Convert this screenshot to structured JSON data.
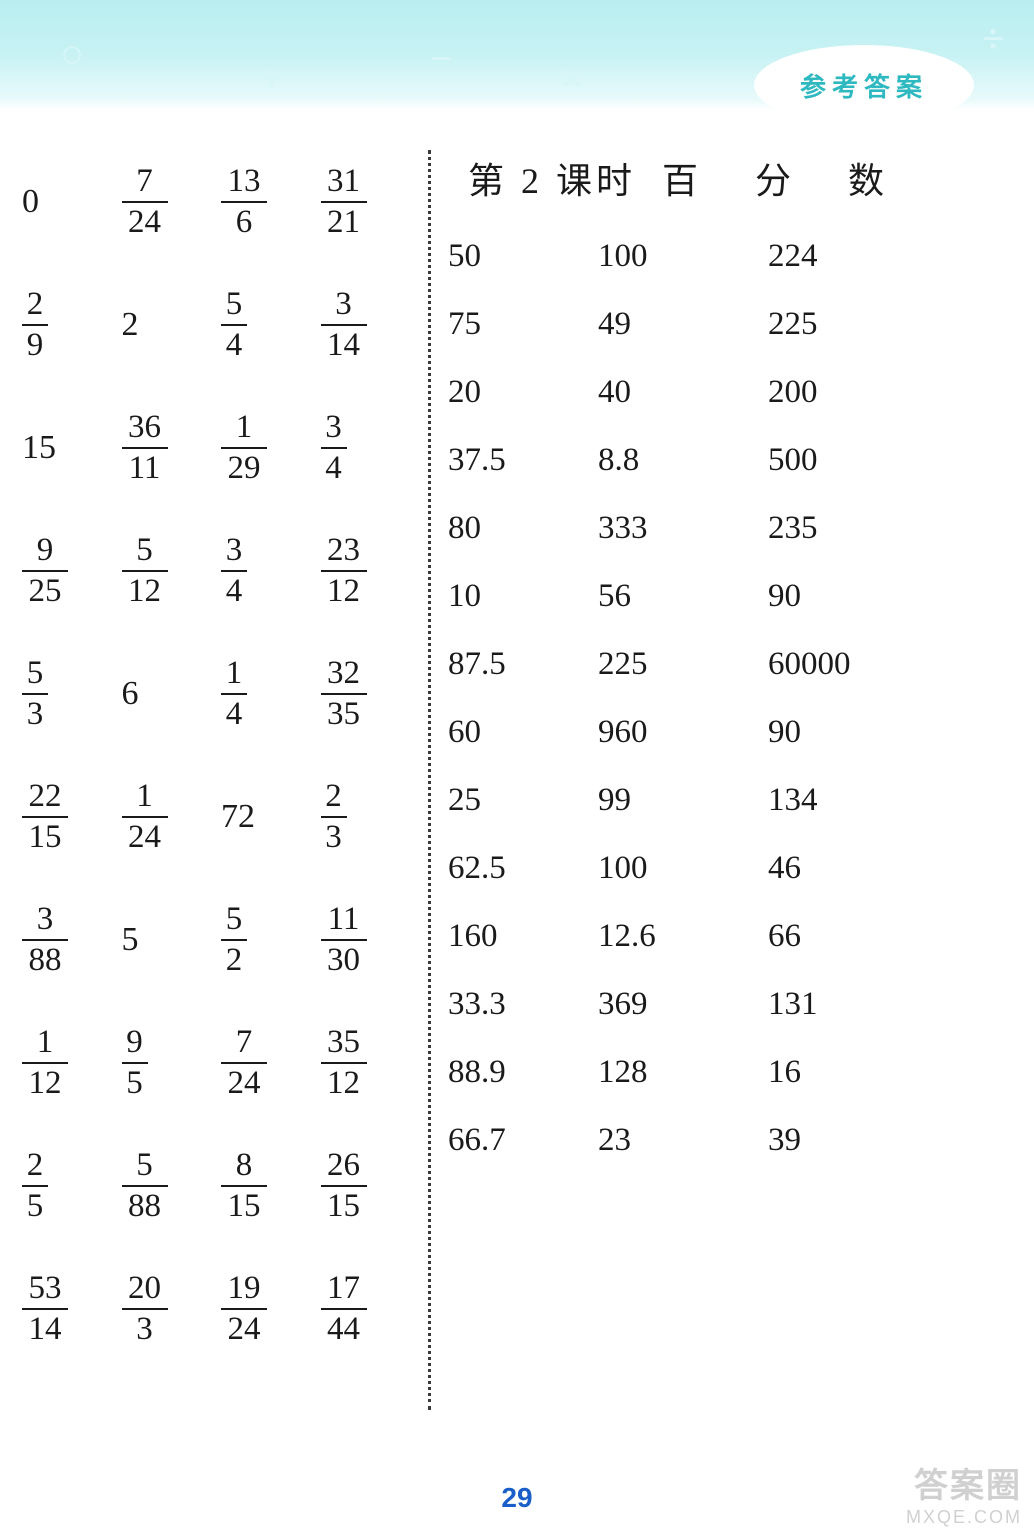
{
  "header": {
    "badge_text": "参考答案",
    "badge_color": "#2eb8c0",
    "band_color": "#b8eef0"
  },
  "left_table": {
    "font_size": 33,
    "text_color": "#1a1a1a",
    "rows": [
      [
        {
          "whole": "0"
        },
        {
          "n": "7",
          "d": "24"
        },
        {
          "n": "13",
          "d": "6"
        },
        {
          "n": "31",
          "d": "21"
        }
      ],
      [
        {
          "n": "2",
          "d": "9"
        },
        {
          "whole": "2"
        },
        {
          "n": "5",
          "d": "4"
        },
        {
          "n": "3",
          "d": "14"
        }
      ],
      [
        {
          "whole": "15"
        },
        {
          "n": "36",
          "d": "11"
        },
        {
          "n": "1",
          "d": "29"
        },
        {
          "n": "3",
          "d": "4"
        }
      ],
      [
        {
          "n": "9",
          "d": "25"
        },
        {
          "n": "5",
          "d": "12"
        },
        {
          "n": "3",
          "d": "4"
        },
        {
          "n": "23",
          "d": "12"
        }
      ],
      [
        {
          "n": "5",
          "d": "3"
        },
        {
          "whole": "6"
        },
        {
          "n": "1",
          "d": "4"
        },
        {
          "n": "32",
          "d": "35"
        }
      ],
      [
        {
          "n": "22",
          "d": "15"
        },
        {
          "n": "1",
          "d": "24"
        },
        {
          "whole": "72"
        },
        {
          "n": "2",
          "d": "3"
        }
      ],
      [
        {
          "n": "3",
          "d": "88"
        },
        {
          "whole": "5"
        },
        {
          "n": "5",
          "d": "2"
        },
        {
          "n": "11",
          "d": "30"
        }
      ],
      [
        {
          "n": "1",
          "d": "12"
        },
        {
          "n": "9",
          "d": "5"
        },
        {
          "n": "7",
          "d": "24"
        },
        {
          "n": "35",
          "d": "12"
        }
      ],
      [
        {
          "n": "2",
          "d": "5"
        },
        {
          "n": "5",
          "d": "88"
        },
        {
          "n": "8",
          "d": "15"
        },
        {
          "n": "26",
          "d": "15"
        }
      ],
      [
        {
          "n": "53",
          "d": "14"
        },
        {
          "n": "20",
          "d": "3"
        },
        {
          "n": "19",
          "d": "24"
        },
        {
          "n": "17",
          "d": "44"
        }
      ]
    ]
  },
  "right_section": {
    "title_prefix": "第 2 课时",
    "title_main": "百 分 数",
    "font_size": 33,
    "text_color": "#1a1a1a",
    "rows": [
      [
        "50",
        "100",
        "224"
      ],
      [
        "75",
        "49",
        "225"
      ],
      [
        "20",
        "40",
        "200"
      ],
      [
        "37.5",
        "8.8",
        "500"
      ],
      [
        "80",
        "333",
        "235"
      ],
      [
        "10",
        "56",
        "90"
      ],
      [
        "87.5",
        "225",
        "60000"
      ],
      [
        "60",
        "960",
        "90"
      ],
      [
        "25",
        "99",
        "134"
      ],
      [
        "62.5",
        "100",
        "46"
      ],
      [
        "160",
        "12.6",
        "66"
      ],
      [
        "33.3",
        "369",
        "131"
      ],
      [
        "88.9",
        "128",
        "16"
      ],
      [
        "66.7",
        "23",
        "39"
      ]
    ]
  },
  "page_number": "29",
  "page_number_color": "#1a5fc9",
  "watermark": {
    "line1": "答案圈",
    "line2": "MXQE.COM"
  }
}
